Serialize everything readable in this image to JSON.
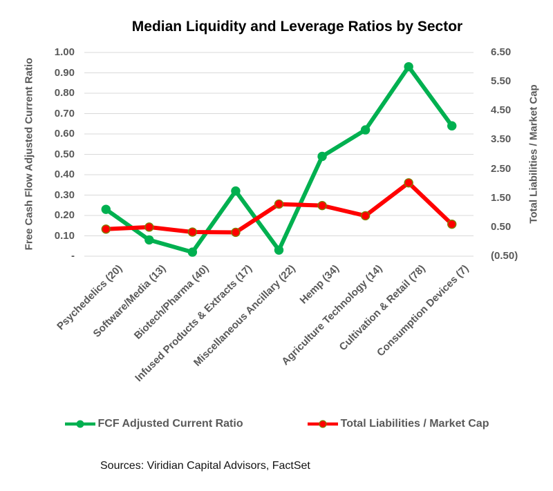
{
  "source_note": "Sources: Viridian Capital Advisors, FactSet",
  "colors": {
    "green_series": "#00B050",
    "red_series": "#FF0000",
    "red_marker_outline": "#7F7F00",
    "axis_text": "#595959",
    "gridline": "#D9D9D9",
    "title_text": "#000000"
  },
  "chart_data": {
    "type": "line",
    "title": "Median Liquidity and Leverage Ratios by Sector",
    "categories": [
      "Psychedelics (20)",
      "Software/Media (13)",
      "Biotech/Pharma (40)",
      "Infused Products & Extracts (17)",
      "Miscellaneous Ancillary (22)",
      "Hemp (34)",
      "Agriculture Technology (14)",
      "Cultivation & Retail (78)",
      "Consumption Devices (7)"
    ],
    "series": [
      {
        "name": "FCF Adjusted Current Ratio",
        "axis": "left",
        "color": "#00B050",
        "marker_outline": "#00B050",
        "values": [
          0.23,
          0.08,
          0.02,
          0.32,
          0.03,
          0.49,
          0.62,
          0.93,
          0.64
        ]
      },
      {
        "name": "Total Liabilities / Market Cap",
        "axis": "right",
        "color": "#FF0000",
        "marker_outline": "#7F7F00",
        "values": [
          0.43,
          0.5,
          0.33,
          0.32,
          1.29,
          1.24,
          0.89,
          2.02,
          0.6
        ]
      }
    ],
    "left_axis": {
      "title": "Free Cash Flow Adjusted Current Ratio",
      "min": 0,
      "max": 1.0,
      "major_unit": 0.1,
      "tick_labels": [
        "1.00",
        "0.90",
        "0.80",
        "0.70",
        "0.60",
        "0.50",
        "0.40",
        "0.30",
        "0.20",
        "0.10",
        "-"
      ],
      "tick_values": [
        1.0,
        0.9,
        0.8,
        0.7,
        0.6,
        0.5,
        0.4,
        0.3,
        0.2,
        0.1,
        0
      ]
    },
    "right_axis": {
      "title": "Total Liabilities / Market Cap",
      "min": -0.5,
      "max": 6.5,
      "major_unit": 1.0,
      "tick_labels": [
        "6.50",
        "5.50",
        "4.50",
        "3.50",
        "2.50",
        "1.50",
        "0.50",
        "(0.50)"
      ],
      "tick_values": [
        6.5,
        5.5,
        4.5,
        3.5,
        2.5,
        1.5,
        0.5,
        -0.5
      ]
    },
    "grid": true,
    "legend_position": "bottom"
  }
}
